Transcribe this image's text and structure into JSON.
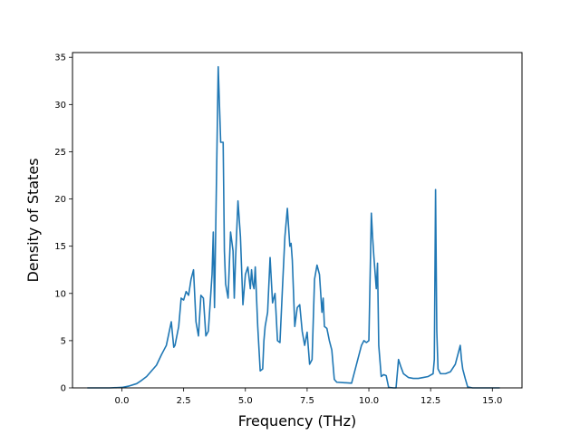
{
  "chart_data": {
    "type": "line",
    "title": "",
    "xlabel": "Frequency (THz)",
    "ylabel": "Density of States",
    "xlim": [
      -2.0,
      16.2
    ],
    "ylim": [
      0,
      35.5
    ],
    "xticks": [
      0.0,
      2.5,
      5.0,
      7.5,
      10.0,
      12.5,
      15.0
    ],
    "xtick_labels": [
      "0.0",
      "2.5",
      "5.0",
      "7.5",
      "10.0",
      "12.5",
      "15.0"
    ],
    "yticks": [
      0,
      5,
      10,
      15,
      20,
      25,
      30,
      35
    ],
    "ytick_labels": [
      "0",
      "5",
      "10",
      "15",
      "20",
      "25",
      "30",
      "35"
    ],
    "grid": false,
    "legend": false,
    "color": "#1f77b4",
    "series": [
      {
        "x": [
          -1.4,
          -1.0,
          -0.5,
          0.0,
          0.3,
          0.6,
          0.8,
          1.0,
          1.2,
          1.4,
          1.6,
          1.7,
          1.8,
          2.0,
          2.1,
          2.15,
          2.3,
          2.4,
          2.5,
          2.6,
          2.7,
          2.8,
          2.9,
          3.0,
          3.1,
          3.2,
          3.3,
          3.4,
          3.5,
          3.6,
          3.65,
          3.7,
          3.75,
          3.8,
          3.9,
          4.0,
          4.1,
          4.15,
          4.2,
          4.3,
          4.4,
          4.5,
          4.55,
          4.6,
          4.7,
          4.8,
          4.9,
          5.0,
          5.1,
          5.2,
          5.25,
          5.3,
          5.35,
          5.4,
          5.5,
          5.6,
          5.7,
          5.75,
          5.8,
          5.9,
          6.0,
          6.1,
          6.2,
          6.3,
          6.4,
          6.5,
          6.6,
          6.7,
          6.8,
          6.85,
          6.9,
          7.0,
          7.1,
          7.2,
          7.3,
          7.4,
          7.5,
          7.6,
          7.7,
          7.8,
          7.9,
          8.0,
          8.1,
          8.15,
          8.2,
          8.3,
          8.4,
          8.5,
          8.6,
          8.7,
          9.0,
          9.3,
          9.5,
          9.7,
          9.8,
          9.9,
          10.0,
          10.1,
          10.15,
          10.2,
          10.3,
          10.35,
          10.4,
          10.5,
          10.6,
          10.7,
          10.8,
          11.0,
          11.1,
          11.2,
          11.3,
          11.4,
          11.6,
          11.8,
          12.0,
          12.2,
          12.4,
          12.6,
          12.65,
          12.7,
          12.75,
          12.8,
          12.9,
          13.1,
          13.3,
          13.5,
          13.6,
          13.7,
          13.75,
          13.8,
          13.9,
          14.0,
          14.2,
          14.5,
          15.0,
          15.3
        ],
        "y": [
          0.0,
          0.0,
          0.0,
          0.05,
          0.2,
          0.45,
          0.8,
          1.2,
          1.8,
          2.4,
          3.5,
          4.0,
          4.5,
          7.0,
          4.3,
          4.5,
          6.5,
          9.5,
          9.3,
          10.2,
          9.8,
          11.5,
          12.5,
          7.0,
          5.5,
          9.8,
          9.5,
          5.5,
          6.0,
          10.0,
          12.0,
          16.5,
          8.5,
          17.0,
          34.0,
          26.0,
          26.0,
          14.5,
          11.0,
          9.5,
          16.5,
          14.5,
          9.5,
          13.5,
          19.8,
          16.0,
          8.8,
          12.0,
          12.8,
          10.5,
          12.5,
          11.0,
          10.5,
          12.8,
          6.5,
          1.8,
          2.0,
          5.0,
          6.5,
          8.0,
          13.8,
          9.0,
          10.0,
          5.0,
          4.8,
          10.5,
          16.0,
          19.0,
          15.0,
          15.3,
          13.5,
          6.5,
          8.5,
          8.8,
          6.0,
          4.5,
          5.9,
          2.5,
          3.0,
          11.5,
          13.0,
          12.0,
          8.0,
          9.5,
          6.5,
          6.3,
          5.0,
          4.0,
          0.9,
          0.6,
          0.55,
          0.5,
          2.5,
          4.5,
          5.0,
          4.8,
          5.0,
          18.5,
          16.0,
          14.0,
          10.5,
          13.2,
          4.5,
          1.2,
          1.4,
          1.3,
          0.05,
          0.0,
          0.0,
          3.0,
          2.2,
          1.5,
          1.1,
          1.0,
          1.0,
          1.1,
          1.2,
          1.5,
          3.0,
          21.0,
          6.0,
          2.0,
          1.5,
          1.5,
          1.7,
          2.5,
          3.5,
          4.5,
          3.0,
          2.0,
          1.0,
          0.1,
          0.0,
          0.0,
          0.0,
          0.0
        ]
      }
    ]
  }
}
